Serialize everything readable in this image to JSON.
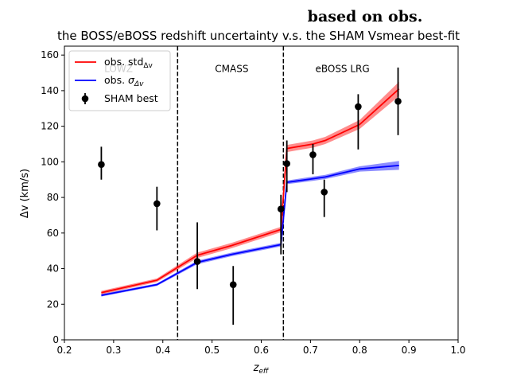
{
  "chart_data": {
    "type": "line",
    "suptitle": "based on obs.",
    "title": "the BOSS/eBOSS redshift uncertainty v.s. the SHAM Vsmear best-fit",
    "xlabel": "z_eff",
    "ylabel": "Δv (km/s)",
    "xlim": [
      0.2,
      1.0
    ],
    "ylim": [
      0,
      165
    ],
    "xticks": [
      0.2,
      0.3,
      0.4,
      0.5,
      0.6,
      0.7,
      0.8,
      0.9,
      1.0
    ],
    "xtick_labels": [
      "0.2",
      "0.3",
      "0.4",
      "0.5",
      "0.6",
      "0.7",
      "0.8",
      "0.9",
      "1.0"
    ],
    "yticks": [
      0,
      20,
      40,
      60,
      80,
      100,
      120,
      140,
      160
    ],
    "ytick_labels": [
      "0",
      "20",
      "40",
      "60",
      "80",
      "100",
      "120",
      "140",
      "160"
    ],
    "grid": false,
    "vlines": [
      0.43,
      0.645
    ],
    "regions": [
      {
        "label": "LOWZ",
        "x": 0.31,
        "y": 152
      },
      {
        "label": "CMASS",
        "x": 0.54,
        "y": 152
      },
      {
        "label": "eBOSS LRG",
        "x": 0.765,
        "y": 152
      }
    ],
    "series": [
      {
        "name": "obs. std_Δv",
        "color": "#ff0000",
        "band_color": "#ff0000",
        "x": [
          0.275,
          0.388,
          0.47,
          0.54,
          0.64,
          0.652,
          0.705,
          0.73,
          0.8,
          0.88
        ],
        "y": [
          26.5,
          33.5,
          47.5,
          53,
          62,
          107.5,
          110,
          112,
          121,
          141
        ],
        "y_lower": [
          25.5,
          32.5,
          46,
          51.5,
          60.5,
          105.5,
          108,
          110,
          118.5,
          137
        ],
        "y_upper": [
          27.5,
          34.5,
          49,
          54.5,
          63.5,
          109.5,
          112,
          114,
          123.5,
          145
        ]
      },
      {
        "name": "obs. σ_Δv",
        "color": "#0000ff",
        "band_color": "#0000ff",
        "x": [
          0.275,
          0.388,
          0.47,
          0.54,
          0.64,
          0.652,
          0.705,
          0.73,
          0.8,
          0.88
        ],
        "y": [
          25,
          31,
          43.5,
          48,
          53.5,
          88.5,
          90.5,
          91.5,
          96,
          98
        ],
        "y_lower": [
          24.3,
          30.3,
          42.5,
          47,
          52.5,
          87.5,
          89.3,
          90.3,
          94.5,
          95.5
        ],
        "y_upper": [
          25.7,
          31.7,
          44.5,
          49,
          54.5,
          89.5,
          91.7,
          92.7,
          97.5,
          100.5
        ]
      }
    ],
    "points": {
      "name": "SHAM best",
      "color": "#000000",
      "x": [
        0.275,
        0.388,
        0.47,
        0.543,
        0.64,
        0.652,
        0.705,
        0.728,
        0.797,
        0.878
      ],
      "y": [
        98.5,
        76.5,
        44,
        31,
        73.5,
        99,
        104,
        83,
        131,
        134
      ],
      "yerr_lower": [
        8.5,
        15,
        15.5,
        22.5,
        25.5,
        16,
        11,
        14,
        24,
        19
      ],
      "yerr_upper": [
        10,
        9.5,
        22,
        10.5,
        8,
        13,
        6,
        7,
        7,
        19
      ]
    },
    "legend": {
      "position": "upper-left",
      "entries": [
        "obs. std_Δv",
        "obs. σ_Δv",
        "SHAM best"
      ]
    }
  }
}
